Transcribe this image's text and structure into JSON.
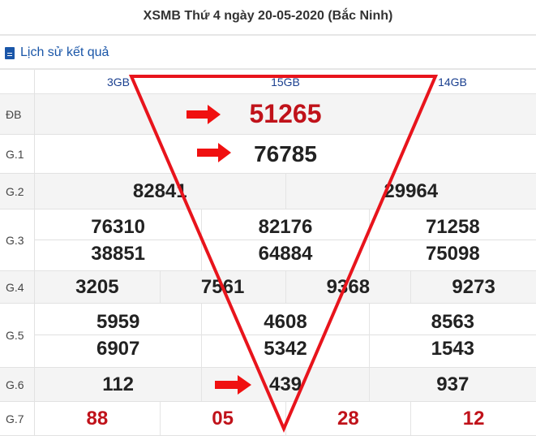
{
  "title": "XSMB Thứ 4 ngày 20-05-2020 (Bắc Ninh)",
  "history_link": "Lịch sử kết quả",
  "codes": [
    "3GB",
    "15GB",
    "14GB"
  ],
  "prizes": [
    {
      "label": "ĐB",
      "values": [
        [
          "51265"
        ]
      ]
    },
    {
      "label": "G.1",
      "values": [
        [
          "76785"
        ]
      ]
    },
    {
      "label": "G.2",
      "values": [
        [
          "82841"
        ],
        [
          "29964"
        ]
      ]
    },
    {
      "label": "G.3",
      "values": [
        [
          "76310",
          "38851"
        ],
        [
          "82176",
          "64884"
        ],
        [
          "71258",
          "75098"
        ]
      ]
    },
    {
      "label": "G.4",
      "values": [
        [
          "3205"
        ],
        [
          "7561"
        ],
        [
          "9368"
        ],
        [
          "9273"
        ]
      ]
    },
    {
      "label": "G.5",
      "values": [
        [
          "5959",
          "6907"
        ],
        [
          "4608",
          "5342"
        ],
        [
          "8563",
          "1543"
        ]
      ]
    },
    {
      "label": "G.6",
      "values": [
        [
          "112"
        ],
        [
          "439"
        ],
        [
          "937"
        ]
      ]
    },
    {
      "label": "G.7",
      "values": [
        [
          "88"
        ],
        [
          "05"
        ],
        [
          "28"
        ],
        [
          "12"
        ]
      ]
    }
  ],
  "colors": {
    "accent_red": "#c0121a",
    "link_blue": "#1a56a8",
    "overlay_red": "#e8141c"
  }
}
